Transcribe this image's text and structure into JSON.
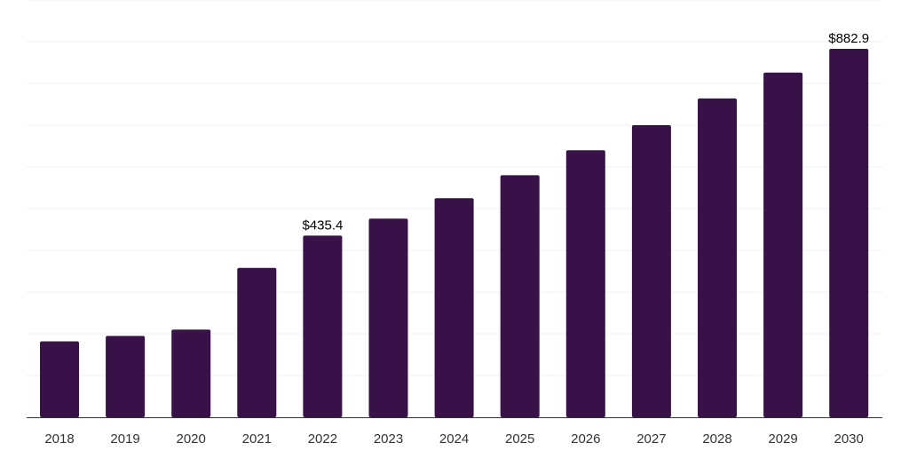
{
  "chart_data": {
    "type": "bar",
    "title": "",
    "xlabel": "",
    "ylabel": "",
    "categories": [
      "2018",
      "2019",
      "2020",
      "2021",
      "2022",
      "2023",
      "2024",
      "2025",
      "2026",
      "2027",
      "2028",
      "2029",
      "2030"
    ],
    "values": [
      182,
      195,
      210,
      358,
      435.4,
      476,
      525,
      580,
      640,
      700,
      764,
      826,
      882.9
    ],
    "data_labels": [
      {
        "category": "2022",
        "text": "$435.4"
      },
      {
        "category": "2030",
        "text": "$882.9"
      }
    ],
    "ylim": [
      0,
      1000
    ],
    "grid": true,
    "y_tick_labels_visible": false,
    "legend": "none",
    "bar_color": "#371147"
  }
}
